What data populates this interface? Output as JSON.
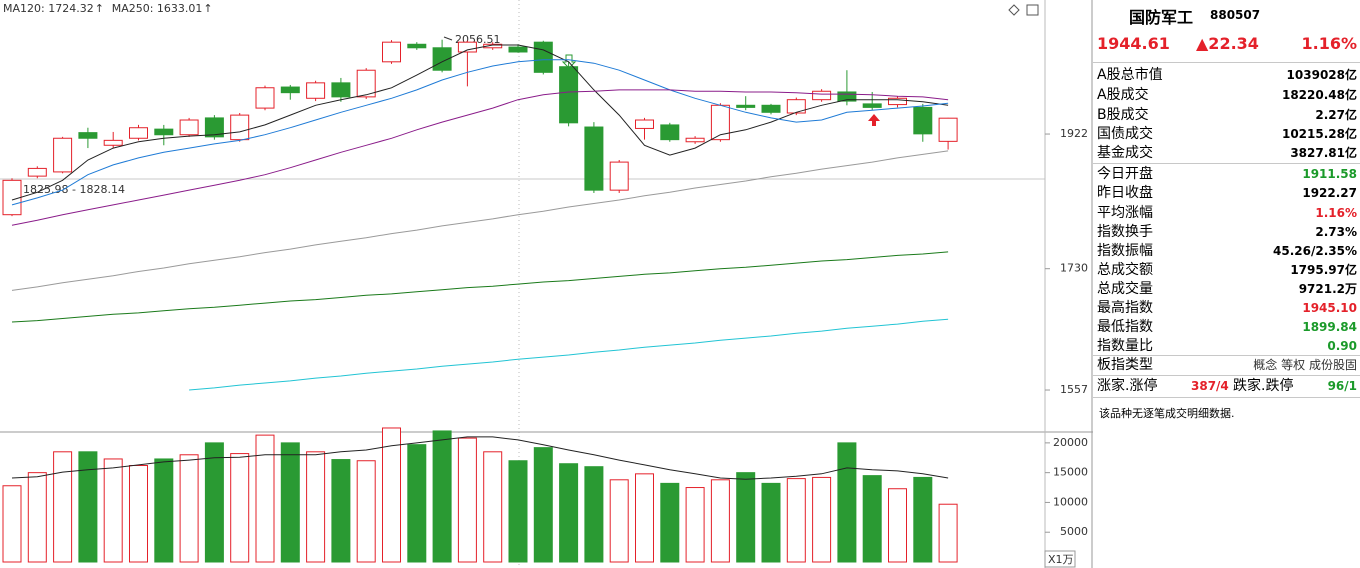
{
  "chart_data": {
    "type": "candlestick",
    "indicators": [
      {
        "text": "MA120: 1724.32",
        "arrow": "↑",
        "color": "#333333"
      },
      {
        "text": "MA250: 1633.01",
        "arrow": "↑",
        "color": "#1aa6b7"
      }
    ],
    "annotations": {
      "high": "2056.51",
      "range": "1825.98 - 1828.14"
    },
    "up_color": "#e4212a",
    "down_color": "#2a9a33",
    "ohlc": {
      "open": [
        1807,
        1862,
        1868,
        1924,
        1906,
        1916,
        1929,
        1921,
        1945,
        1914,
        1959,
        1989,
        1973,
        1995,
        1975,
        2025,
        2050,
        2045,
        2039,
        2045,
        2046,
        2053,
        2018,
        1932,
        1842,
        1930,
        1935,
        1911,
        1914,
        1963,
        1963,
        1952,
        1971,
        1982,
        1965,
        1964,
        1960,
        1911.58
      ],
      "high": [
        1859,
        1876,
        1918,
        1931,
        1925,
        1935,
        1935,
        1945,
        1949,
        1952,
        1991,
        1992,
        1998,
        2002,
        2016,
        2056,
        2053,
        2056.51,
        2055,
        2053,
        2050,
        2055,
        2025,
        1939,
        1885,
        1945,
        1938,
        1919,
        1966,
        1976,
        1965,
        1974,
        1986,
        2013,
        1982,
        1976,
        1965,
        1945.1
      ],
      "low": [
        1805,
        1859,
        1866,
        1902,
        1902,
        1913,
        1906,
        1918,
        1914,
        1911,
        1956,
        1971,
        1969,
        1968,
        1972,
        2022,
        2042,
        2010,
        1990,
        2042,
        2038,
        2007,
        1933,
        1838,
        1838,
        1914,
        1911,
        1908,
        1911,
        1956,
        1950,
        1949,
        1968,
        1963,
        1956,
        1960,
        1911,
        1899.84
      ],
      "close": [
        1856,
        1873,
        1916,
        1916,
        1913,
        1931,
        1921,
        1942,
        1918,
        1949,
        1988,
        1981,
        1995,
        1975,
        2013,
        2053,
        2045,
        2013,
        2053,
        2050,
        2039,
        2010,
        1938,
        1842,
        1882,
        1942,
        1914,
        1916,
        1963,
        1960,
        1953,
        1971,
        1983,
        1969,
        1960,
        1973,
        1922.27,
        1944.61
      ]
    },
    "ylim": [
      1500,
      2106
    ],
    "yticks": [
      1922,
      1730,
      1557
    ],
    "ma_series": [
      {
        "color": "#222222",
        "values": [
          1828,
          1839,
          1856,
          1885,
          1902,
          1911,
          1916,
          1919,
          1921,
          1925,
          1935,
          1949,
          1963,
          1971,
          1978,
          1988,
          2006,
          2025,
          2042,
          2049,
          2049,
          2042,
          2025,
          1985,
          1949,
          1906,
          1892,
          1902,
          1921,
          1928,
          1939,
          1953,
          1963,
          1971,
          1971,
          1971,
          1968,
          1963
        ]
      },
      {
        "color": "#1f7bd6",
        "values": [
          1821,
          1831,
          1842,
          1864,
          1878,
          1888,
          1896,
          1902,
          1908,
          1913,
          1921,
          1931,
          1942,
          1953,
          1963,
          1973,
          1985,
          1999,
          2010,
          2019,
          2025,
          2028,
          2028,
          2023,
          2013,
          1999,
          1985,
          1973,
          1963,
          1953,
          1945,
          1939,
          1942,
          1953,
          1956,
          1959,
          1962,
          1966
        ]
      },
      {
        "color": "#8a1c8a",
        "values": [
          1792,
          1799,
          1807,
          1814,
          1821,
          1828,
          1835,
          1842,
          1849,
          1856,
          1864,
          1874,
          1885,
          1896,
          1906,
          1916,
          1928,
          1939,
          1949,
          1959,
          1971,
          1978,
          1982,
          1983,
          1985,
          1985,
          1985,
          1983,
          1983,
          1982,
          1982,
          1981,
          1979,
          1979,
          1978,
          1976,
          1975,
          1971
        ]
      },
      {
        "color": "#9a9a9a",
        "values": [
          1699,
          1704,
          1710,
          1715,
          1720,
          1726,
          1731,
          1737,
          1742,
          1747,
          1753,
          1758,
          1764,
          1769,
          1774,
          1780,
          1785,
          1791,
          1796,
          1801,
          1807,
          1812,
          1818,
          1823,
          1828,
          1834,
          1839,
          1845,
          1850,
          1855,
          1861,
          1866,
          1872,
          1877,
          1882,
          1888,
          1893,
          1898
        ]
      },
      {
        "color": "#1a7a1a",
        "values": [
          1654,
          1656,
          1659,
          1662,
          1665,
          1667,
          1670,
          1673,
          1675,
          1678,
          1681,
          1684,
          1686,
          1689,
          1692,
          1694,
          1697,
          1700,
          1703,
          1705,
          1708,
          1711,
          1713,
          1716,
          1719,
          1722,
          1724,
          1727,
          1730,
          1732,
          1735,
          1738,
          1741,
          1743,
          1746,
          1749,
          1751,
          1754
        ]
      },
      {
        "color": "#22c4d4",
        "values": [
          null,
          null,
          null,
          null,
          null,
          null,
          null,
          1557,
          1560,
          1564,
          1567,
          1570,
          1574,
          1577,
          1581,
          1584,
          1587,
          1591,
          1594,
          1597,
          1601,
          1604,
          1607,
          1611,
          1614,
          1618,
          1621,
          1624,
          1628,
          1631,
          1634,
          1638,
          1641,
          1645,
          1648,
          1651,
          1655,
          1658
        ]
      }
    ],
    "volume": {
      "values": [
        12800,
        15000,
        18500,
        18500,
        17300,
        16200,
        17300,
        18000,
        20000,
        18200,
        21300,
        20000,
        18500,
        17200,
        17000,
        22500,
        19700,
        22000,
        20800,
        18500,
        17000,
        19200,
        16500,
        16000,
        13800,
        14800,
        13200,
        12500,
        13800,
        15000,
        13200,
        14000,
        14200,
        20000,
        14500,
        12300,
        14200,
        9700
      ],
      "ma_color": "#222222",
      "ma_values": [
        14100,
        14300,
        15100,
        15500,
        15800,
        16300,
        16800,
        17100,
        17500,
        17600,
        18000,
        18000,
        18000,
        18500,
        18800,
        19500,
        20000,
        20500,
        21000,
        21000,
        20500,
        19700,
        18800,
        18000,
        17100,
        16300,
        15500,
        14800,
        14100,
        13900,
        14100,
        14400,
        14800,
        15800,
        15500,
        15300,
        14800,
        14100
      ],
      "ylim": [
        0,
        23000
      ],
      "yticks": [
        20000,
        15000,
        10000,
        5000
      ],
      "unit": "X1万"
    }
  },
  "quote_panel": {
    "name": "国防军工",
    "code": "880507",
    "price": "1944.61",
    "change": "▲22.34",
    "change_pct": "1.16%",
    "rows": [
      {
        "label": "A股总市值",
        "value": "1039028亿",
        "color": "#000000"
      },
      {
        "label": "A股成交",
        "value": "18220.48亿",
        "color": "#000000"
      },
      {
        "label": "B股成交",
        "value": "2.27亿",
        "color": "#000000"
      },
      {
        "label": "国债成交",
        "value": "10215.28亿",
        "color": "#000000"
      },
      {
        "label": "基金成交",
        "value": "3827.81亿",
        "color": "#000000"
      },
      {
        "label": "今日开盘",
        "value": "1911.58",
        "color": "#1b9a2a"
      },
      {
        "label": "昨日收盘",
        "value": "1922.27",
        "color": "#000000"
      },
      {
        "label": "平均涨幅",
        "value": "1.16%",
        "color": "#e4212a"
      },
      {
        "label": "指数换手",
        "value": "2.73%",
        "color": "#000000"
      },
      {
        "label": "指数振幅",
        "value": "45.26/2.35%",
        "color": "#000000"
      },
      {
        "label": "总成交额",
        "value": "1795.97亿",
        "color": "#000000"
      },
      {
        "label": "总成交量",
        "value": "9721.2万",
        "color": "#000000"
      },
      {
        "label": "最高指数",
        "value": "1945.10",
        "color": "#e4212a"
      },
      {
        "label": "最低指数",
        "value": "1899.84",
        "color": "#1b9a2a"
      },
      {
        "label": "指数量比",
        "value": "0.90",
        "color": "#1b9a2a"
      }
    ],
    "board_type": {
      "label": "板指类型",
      "options": [
        "概念",
        "等权",
        "成份股固"
      ]
    },
    "breadth": {
      "up_label": "涨家.涨停",
      "up_value": "387/4",
      "down_label": "跌家.跌停",
      "down_value": "96/1"
    },
    "note": "该品种无逐笔成交明细数据."
  }
}
